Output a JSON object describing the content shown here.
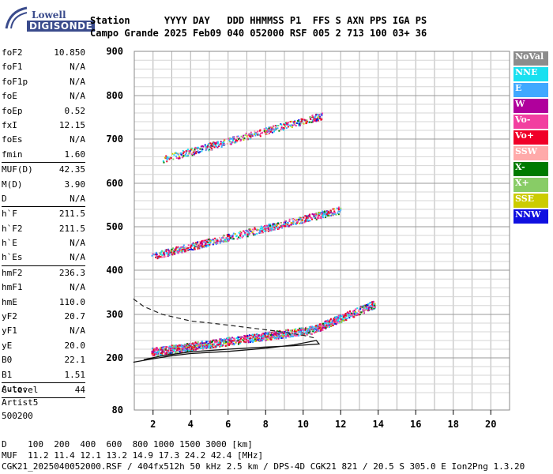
{
  "logo": {
    "line1": "Lowell",
    "line2": "DIGISONDE"
  },
  "header": {
    "labels": "Station      YYYY DAY   DDD HHMMSS P1  FFS S AXN PPS IGA PS",
    "values": "Campo Grande 2025 Feb09 040 052000 RSF 005 2 713 100 03+ 36"
  },
  "params": {
    "group1": [
      {
        "name": "foF2",
        "value": "10.850"
      },
      {
        "name": "foF1",
        "value": "N/A"
      },
      {
        "name": "foF1p",
        "value": "N/A"
      },
      {
        "name": "foE",
        "value": "N/A"
      },
      {
        "name": "foEp",
        "value": "0.52"
      },
      {
        "name": "fxI",
        "value": "12.15"
      },
      {
        "name": "foEs",
        "value": "N/A"
      },
      {
        "name": "fmin",
        "value": "1.60"
      }
    ],
    "group2": [
      {
        "name": "MUF(D)",
        "value": "42.35"
      },
      {
        "name": "M(D)",
        "value": "3.90"
      },
      {
        "name": "D",
        "value": "N/A"
      }
    ],
    "group3": [
      {
        "name": "h`F",
        "value": "211.5"
      },
      {
        "name": "h`F2",
        "value": "211.5"
      },
      {
        "name": "h`E",
        "value": "N/A"
      },
      {
        "name": "h`Es",
        "value": "N/A"
      }
    ],
    "group4": [
      {
        "name": "hmF2",
        "value": "236.3"
      },
      {
        "name": "hmF1",
        "value": "N/A"
      },
      {
        "name": "hmE",
        "value": "110.0"
      },
      {
        "name": "yF2",
        "value": "20.7"
      },
      {
        "name": "yF1",
        "value": "N/A"
      },
      {
        "name": "yE",
        "value": "20.0"
      },
      {
        "name": "B0",
        "value": "22.1"
      },
      {
        "name": "B1",
        "value": "1.51"
      }
    ],
    "group5": [
      {
        "name": "C-level",
        "value": "44"
      }
    ]
  },
  "auto": {
    "line1": "Auto:",
    "line2": "Artist5",
    "line3": "500200"
  },
  "legend": [
    {
      "label": "NoVal",
      "color": "#8c8c8c"
    },
    {
      "label": "NNE",
      "color": "#19e0f0"
    },
    {
      "label": "E",
      "color": "#40a8ff"
    },
    {
      "label": "W",
      "color": "#b0009c"
    },
    {
      "label": "Vo-",
      "color": "#f23fa0"
    },
    {
      "label": "Vo+",
      "color": "#f00028"
    },
    {
      "label": "SSW",
      "color": "#ffaaaa"
    },
    {
      "label": "X-",
      "color": "#007a00"
    },
    {
      "label": "X+",
      "color": "#88cc66"
    },
    {
      "label": "SSE",
      "color": "#cccc00"
    },
    {
      "label": "NNW",
      "color": "#1010e0"
    }
  ],
  "chart_data": {
    "type": "scatter",
    "xlim": [
      1,
      21
    ],
    "ylim": [
      80,
      900
    ],
    "x_ticks": [
      2,
      4,
      6,
      8,
      10,
      12,
      14,
      16,
      18,
      20
    ],
    "y_ticks": [
      80,
      200,
      300,
      400,
      500,
      600,
      700,
      800,
      900
    ],
    "grid": true,
    "traces": [
      {
        "name": "F2 first hop",
        "x_range": [
          1.9,
          13.8
        ],
        "y_start": 215,
        "y_end": 285
      },
      {
        "name": "F2 second hop",
        "x_range": [
          1.9,
          12.0
        ],
        "y_start": 433,
        "y_end": 540
      },
      {
        "name": "F2 third hop",
        "x_range": [
          2.5,
          11.0
        ],
        "y_start": 655,
        "y_end": 755
      }
    ],
    "profile_dashed": [
      [
        0.95,
        335
      ],
      [
        1.5,
        318
      ],
      [
        2.5,
        300
      ],
      [
        4,
        285
      ],
      [
        5.5,
        278
      ],
      [
        7,
        270
      ],
      [
        8.5,
        262
      ],
      [
        10,
        252
      ],
      [
        10.7,
        245
      ]
    ],
    "profile_solid": [
      [
        0.95,
        190
      ],
      [
        2,
        198
      ],
      [
        3,
        205
      ],
      [
        4,
        210
      ],
      [
        6,
        215
      ],
      [
        8,
        222
      ],
      [
        9.5,
        230
      ],
      [
        10.7,
        240
      ],
      [
        10.85,
        232
      ],
      [
        9.5,
        228
      ],
      [
        8,
        225
      ],
      [
        6,
        220
      ],
      [
        4,
        214
      ],
      [
        2.5,
        205
      ],
      [
        1.5,
        196
      ]
    ]
  },
  "bottom": {
    "d_row": "D    100  200  400  600  800 1000 1500 3000 [km]",
    "muf_row": "MUF  11.2 11.4 12.1 13.2 14.9 17.3 24.2 42.4 [MHz]",
    "footer": "CGK21_2025040052000.RSF / 404fx512h 50 kHz 2.5 km / DPS-4D CGK21 821 / 20.5 S 305.0 E Ion2Png 1.3.20"
  }
}
